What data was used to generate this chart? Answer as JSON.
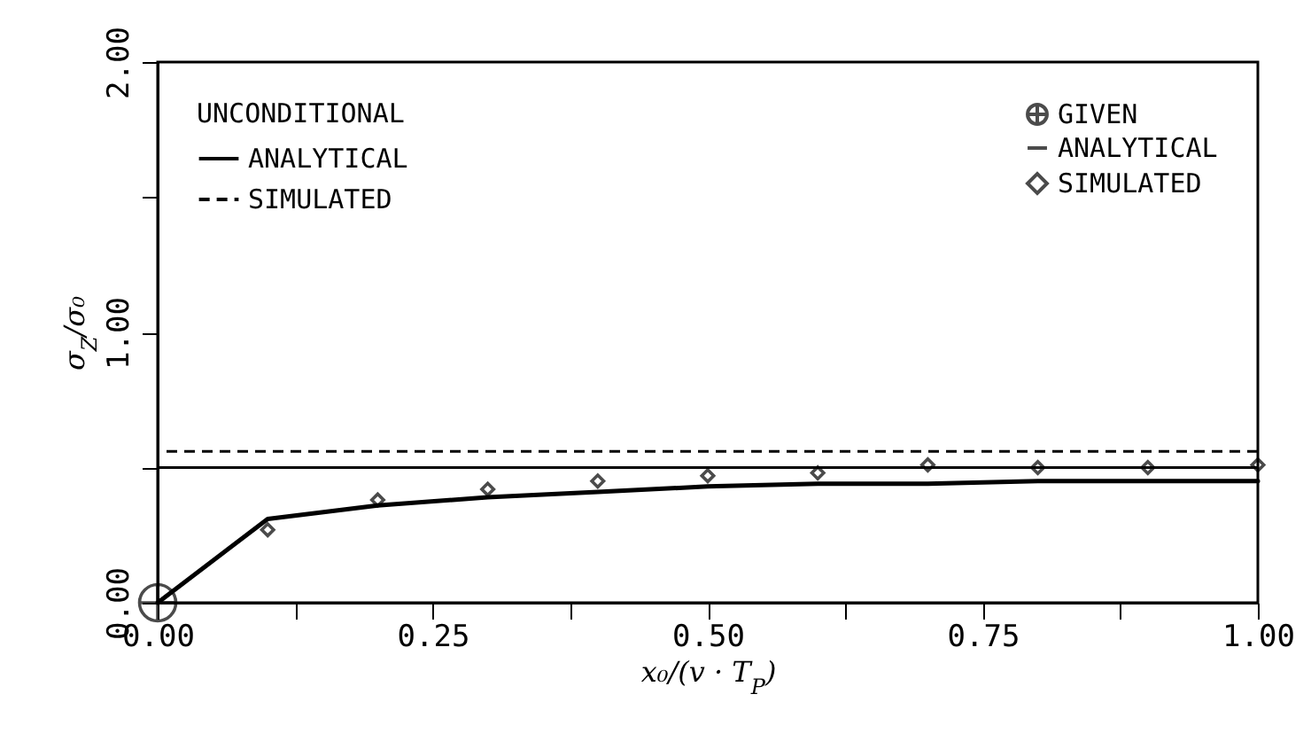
{
  "chart_data": {
    "type": "line",
    "xlabel": "x₀/(v · T$_{P}$)",
    "ylabel": "σ$_{Z}$/σ₀",
    "legend_title": "UNCONDITIONAL",
    "xlim": [
      0,
      1
    ],
    "ylim": [
      0,
      2
    ],
    "xticks": [
      {
        "value": 0,
        "label": "0.00"
      },
      {
        "value": 0.125,
        "label": null
      },
      {
        "value": 0.25,
        "label": "0.25"
      },
      {
        "value": 0.375,
        "label": null
      },
      {
        "value": 0.5,
        "label": "0.50"
      },
      {
        "value": 0.625,
        "label": null
      },
      {
        "value": 0.75,
        "label": "0.75"
      },
      {
        "value": 0.875,
        "label": null
      },
      {
        "value": 1,
        "label": "1.00"
      }
    ],
    "yticks": [
      {
        "value": 0,
        "label": "0.00"
      },
      {
        "value": 0.5,
        "label": null
      },
      {
        "value": 1,
        "label": "1.00"
      },
      {
        "value": 1.5,
        "label": null
      },
      {
        "value": 2,
        "label": "2.00"
      }
    ],
    "ref_lines": [
      {
        "axis": "y",
        "value": 0.5,
        "label": "ANALYTICAL",
        "color": "#000000",
        "line_style": "solid"
      },
      {
        "axis": "y",
        "value": 0.56,
        "label": "SIMULATED",
        "color": "#000000",
        "line_style": "dashed"
      }
    ],
    "series": [
      {
        "name": "GIVEN",
        "type": "scatter",
        "marker": "circle",
        "color": "#000000",
        "x": [
          0
        ],
        "values": [
          0
        ]
      },
      {
        "name": "ANALYTICAL",
        "type": "line",
        "color": "#000000",
        "line_style": "solid",
        "x": [
          0,
          0.1,
          0.2,
          0.3,
          0.4,
          0.5,
          0.6,
          0.7,
          0.8,
          0.9,
          1.0
        ],
        "values": [
          0,
          0.31,
          0.36,
          0.39,
          0.41,
          0.43,
          0.44,
          0.44,
          0.45,
          0.45,
          0.45
        ]
      },
      {
        "name": "SIMULATED",
        "type": "scatter",
        "marker": "diamond",
        "color": "#000000",
        "x": [
          0.1,
          0.2,
          0.3,
          0.4,
          0.5,
          0.6,
          0.7,
          0.8,
          0.9,
          1.0
        ],
        "values": [
          0.27,
          0.38,
          0.42,
          0.45,
          0.47,
          0.48,
          0.51,
          0.5,
          0.5,
          0.51
        ]
      }
    ],
    "grid": false,
    "legend": "top"
  }
}
